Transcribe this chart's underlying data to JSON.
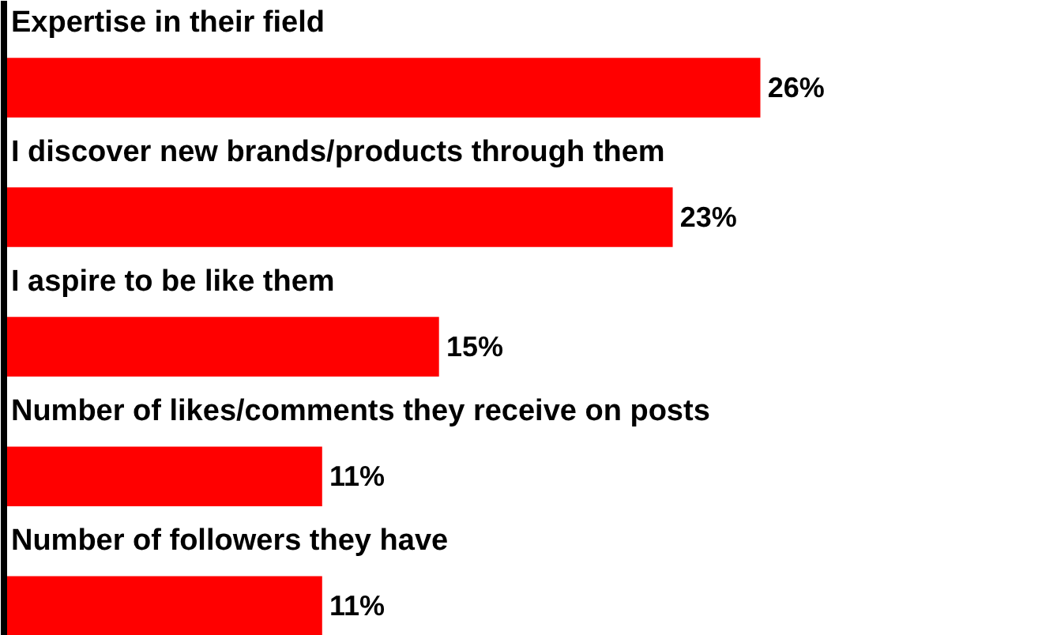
{
  "chart_data": {
    "type": "bar",
    "orientation": "horizontal",
    "categories": [
      "Expertise in their field",
      "I discover new brands/products through them",
      "I aspire to be like them",
      "Number of likes/comments they receive on posts",
      "Number of followers they have"
    ],
    "values": [
      26,
      23,
      15,
      11,
      11
    ],
    "color": "#ff0000",
    "data_labels": true,
    "value_labels": [
      "26%",
      "23%",
      "15%",
      "11%",
      "11%"
    ],
    "grid": false
  }
}
